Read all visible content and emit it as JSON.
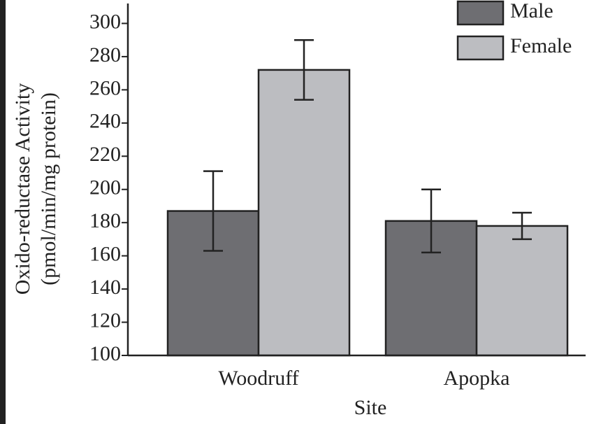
{
  "chart_data": {
    "type": "bar",
    "xlabel": "Site",
    "ylabel": [
      "Oxido-reductase Activity",
      "(pmol/min/mg protein)"
    ],
    "categories": [
      "Woodruff",
      "Apopka"
    ],
    "series": [
      {
        "name": "Male",
        "color": "#6e6e72",
        "values": [
          187,
          181
        ],
        "errors": [
          24,
          19
        ]
      },
      {
        "name": "Female",
        "color": "#bcbdc1",
        "values": [
          272,
          178
        ],
        "errors": [
          18,
          8
        ]
      }
    ],
    "ylim": [
      100,
      312
    ],
    "yticks": [
      100,
      120,
      140,
      160,
      180,
      200,
      220,
      240,
      260,
      280,
      300
    ],
    "legend": "top-right"
  }
}
